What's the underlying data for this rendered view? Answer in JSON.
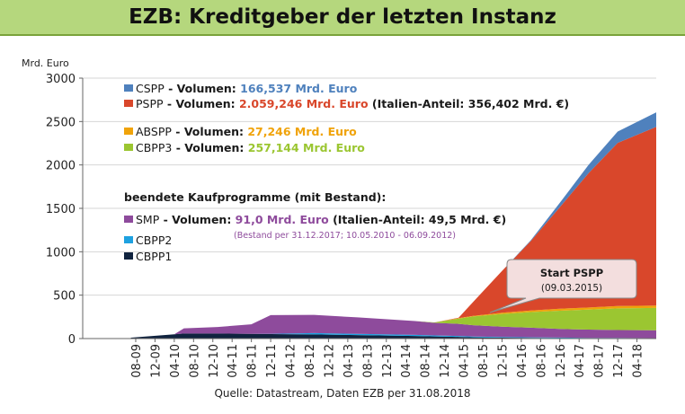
{
  "page_title": "EZB: Kreditgeber der letzten Instanz",
  "source": "Quelle: Datastream, Daten EZB per 31.08.2018",
  "colors": {
    "CSPP": "#4f81bd",
    "PSPP": "#d9472b",
    "ABSPP": "#f0a30a",
    "CBPP3": "#9bc631",
    "SMP": "#8e4b9c",
    "CBPP2": "#1ea1e0",
    "CBPP1": "#10233f"
  },
  "legend": {
    "active": [
      {
        "key": "CSPP",
        "name": "CSPP",
        "prefix": " - Volumen: ",
        "value": "166,537 Mrd. Euro",
        "suffix": ""
      },
      {
        "key": "PSPP",
        "name": "PSPP",
        "prefix": " - Volumen: ",
        "value": "2.059,246 Mrd. Euro",
        "suffix": " (Italien-Anteil: 356,402 Mrd. €)"
      },
      {
        "key": "ABSPP",
        "name": "ABSPP",
        "prefix": " - Volumen: ",
        "value": "27,246 Mrd. Euro",
        "suffix": ""
      },
      {
        "key": "CBPP3",
        "name": "CBPP3",
        "prefix": " - Volumen: ",
        "value": "257,144 Mrd. Euro",
        "suffix": ""
      }
    ],
    "ended_heading": "beendete Kaufprogramme (mit Bestand):",
    "ended": [
      {
        "key": "SMP",
        "name": "SMP",
        "prefix": " - Volumen: ",
        "value": "91,0 Mrd. Euro",
        "suffix": " (Italien-Anteil: 49,5 Mrd. €)"
      },
      {
        "key": "CBPP2",
        "name": "CBPP2",
        "prefix": "",
        "value": "",
        "suffix": ""
      },
      {
        "key": "CBPP1",
        "name": "CBPP1",
        "prefix": "",
        "value": "",
        "suffix": ""
      }
    ],
    "smp_note": "(Bestand per 31.12.2017; 10.05.2010 - 06.09.2012)"
  },
  "annotation": {
    "title": "Start PSPP",
    "date": "(09.03.2015)"
  },
  "chart_data": {
    "type": "area",
    "stacked": true,
    "ylabel": "Mrd. Euro",
    "ylim": [
      0,
      3000
    ],
    "yticks": [
      0,
      500,
      1000,
      1500,
      2000,
      2500,
      3000
    ],
    "xlim": [
      "2008-09",
      "2018-08"
    ],
    "xticks": [
      "08-09",
      "12-09",
      "04-10",
      "08-10",
      "12-10",
      "04-11",
      "08-11",
      "12-11",
      "04-12",
      "08-12",
      "12-12",
      "04-13",
      "08-13",
      "12-13",
      "04-14",
      "08-14",
      "12-14",
      "04-15",
      "08-15",
      "12-15",
      "04-16",
      "08-16",
      "12-16",
      "04-17",
      "08-17",
      "12-17",
      "04-18"
    ],
    "x": [
      "2009-07",
      "2010-04",
      "2010-06",
      "2011-01",
      "2011-08",
      "2011-12",
      "2012-09",
      "2013-06",
      "2014-06",
      "2014-10",
      "2015-03",
      "2015-06",
      "2015-12",
      "2016-06",
      "2016-12",
      "2017-06",
      "2017-12",
      "2018-08"
    ],
    "series": [
      {
        "name": "CBPP1",
        "values": [
          10,
          50,
          58,
          58,
          55,
          52,
          48,
          40,
          30,
          25,
          20,
          15,
          10,
          8,
          5,
          3,
          2,
          1
        ]
      },
      {
        "name": "CBPP2",
        "values": [
          0,
          0,
          0,
          0,
          0,
          3,
          15,
          14,
          12,
          11,
          10,
          9,
          8,
          7,
          6,
          5,
          5,
          4
        ]
      },
      {
        "name": "SMP",
        "values": [
          0,
          0,
          60,
          75,
          110,
          215,
          210,
          190,
          160,
          145,
          140,
          130,
          120,
          110,
          100,
          95,
          91,
          91
        ]
      },
      {
        "name": "CBPP3",
        "values": [
          0,
          0,
          0,
          0,
          0,
          0,
          0,
          0,
          0,
          5,
          60,
          100,
          145,
          180,
          210,
          230,
          250,
          257
        ]
      },
      {
        "name": "ABSPP",
        "values": [
          0,
          0,
          0,
          0,
          0,
          0,
          0,
          0,
          0,
          0,
          5,
          7,
          15,
          19,
          23,
          25,
          26,
          27
        ]
      },
      {
        "name": "PSPP",
        "values": [
          0,
          0,
          0,
          0,
          0,
          0,
          0,
          0,
          0,
          0,
          5,
          160,
          480,
          800,
          1170,
          1550,
          1880,
          2059
        ]
      },
      {
        "name": "CSPP",
        "values": [
          0,
          0,
          0,
          0,
          0,
          0,
          0,
          0,
          0,
          0,
          0,
          0,
          0,
          10,
          50,
          95,
          130,
          167
        ]
      }
    ]
  }
}
